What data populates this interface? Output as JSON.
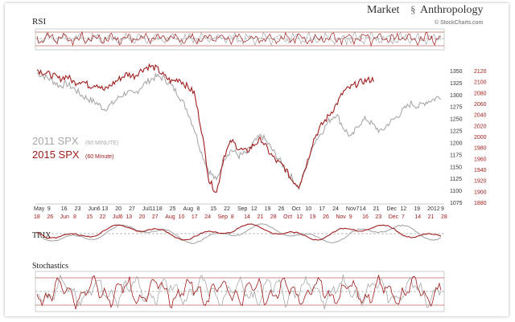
{
  "header": {
    "brand_left": "Market",
    "brand_right": "Anthropology",
    "credit": "© StockCharts.com"
  },
  "panels": {
    "rsi": "RSI",
    "trix": "TRIX",
    "stochastics": "Stochastics"
  },
  "legend": {
    "s2011_name": "2011 SPX",
    "s2011_note": "(60 MINUTE)",
    "s2015_name": "2015 SPX",
    "s2015_note": "(60 Minute)"
  },
  "colors": {
    "s2011": "#a8a8a8",
    "s2015": "#a01c1c",
    "axis_red": "#a01c1c",
    "axis_dark": "#333333"
  },
  "chart_data": {
    "type": "line",
    "title": "",
    "xlabel": "",
    "ylabel": "",
    "grid": false,
    "left_axis_ticks_2011": [
      "1350",
      "1325",
      "1300",
      "1275",
      "1250",
      "1225",
      "1200",
      "1175",
      "1150",
      "1125",
      "1100",
      "1075"
    ],
    "right_axis_ticks_2015": [
      "2120",
      "2100",
      "2080",
      "2060",
      "2040",
      "2020",
      "2000",
      "1980",
      "1960",
      "1940",
      "1920",
      "1900",
      "1880"
    ],
    "ylim_2011": [
      1075,
      1350
    ],
    "ylim_2015": [
      1880,
      2120
    ],
    "x_labels_2011": [
      "May",
      "9",
      "16",
      "23",
      "Jun6",
      "13",
      "20",
      "27",
      "Jul11",
      "18",
      "25",
      "Aug",
      "8",
      "15",
      "22",
      "Sep",
      "12",
      "19",
      "26",
      "Oct",
      "10",
      "17",
      "24",
      "Nov7",
      "14",
      "21",
      "Dec",
      "12",
      "19",
      "2012",
      "9"
    ],
    "x_labels_2015": [
      "18",
      "26",
      "Jun",
      "8",
      "15",
      "22",
      "Jul6",
      "13",
      "20",
      "27",
      "Aug",
      "10",
      "17",
      "24",
      "Sep",
      "8",
      "14",
      "21",
      "28",
      "Oct",
      "12",
      "19",
      "26",
      "Nov",
      "9",
      "16",
      "23",
      "Dec",
      "7",
      "14",
      "21",
      "28"
    ],
    "series": [
      {
        "name": "2011 SPX",
        "values": [
          1345,
          1338,
          1330,
          1318,
          1322,
          1312,
          1298,
          1290,
          1282,
          1270,
          1280,
          1295,
          1305,
          1300,
          1318,
          1330,
          1338,
          1334,
          1318,
          1298,
          1270,
          1230,
          1178,
          1140,
          1120,
          1168,
          1185,
          1172,
          1178,
          1200,
          1215,
          1195,
          1172,
          1150,
          1128,
          1105,
          1150,
          1200,
          1220,
          1245,
          1260,
          1230,
          1210,
          1238,
          1250,
          1235,
          1222,
          1240,
          1252,
          1268,
          1282,
          1275,
          1285,
          1290,
          1298
        ]
      },
      {
        "name": "2015 SPX",
        "values": [
          2122,
          2116,
          2112,
          2105,
          2110,
          2098,
          2102,
          2092,
          2096,
          2084,
          2095,
          2105,
          2114,
          2110,
          2122,
          2128,
          2124,
          2110,
          2100,
          2105,
          2092,
          2080,
          2012,
          1920,
          1898,
          1965,
          1992,
          1978,
          1972,
          1985,
          1995,
          1972,
          1955,
          1945,
          1922,
          1910,
          1948,
          1995,
          2020,
          2038,
          2058,
          2082,
          2090,
          2098,
          2102,
          2104,
          2085,
          2072,
          2050,
          2045,
          2062,
          2076,
          2088,
          2092,
          2094
        ]
      }
    ]
  }
}
